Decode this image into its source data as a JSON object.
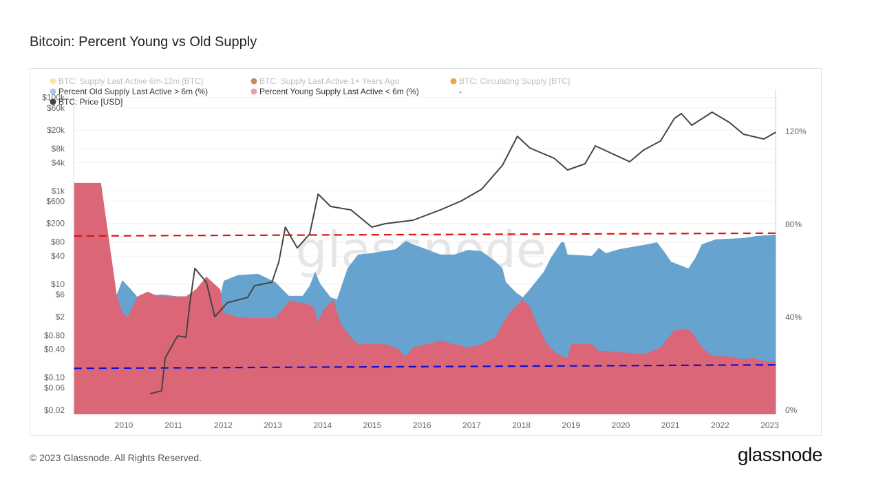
{
  "title": "Bitcoin: Percent Young vs Old Supply",
  "footer": "© 2023 Glassnode. All Rights Reserved.",
  "logo_text": "glassnode",
  "watermark_text": "glassnode",
  "colors": {
    "young_fill": "#db6677",
    "old_fill": "#67a3cf",
    "price_line": "#444444",
    "upper_band": "#e01010",
    "lower_band": "#1010d0"
  },
  "legend": [
    {
      "label": "BTC: Supply Last Active 6m-12m [BTC]",
      "color": "#f8e4a6",
      "faded": true
    },
    {
      "label": "BTC: Supply Last Active 1+ Years Ago",
      "color": "#c98b55",
      "faded": true
    },
    {
      "label": "BTC: Circulating Supply [BTC]",
      "color": "#f5a04a",
      "faded": true
    },
    {
      "label": "Percent Old Supply Last Active > 6m (%)",
      "color": "#a8cbe4",
      "faded": false
    },
    {
      "label": "Percent Young Supply Last Active < 6m (%)",
      "color": "#e8a0b0",
      "faded": false
    },
    {
      "label": "-",
      "color": "",
      "faded": false
    },
    {
      "label": "BTC: Price [USD]",
      "color": "#444444",
      "faded": false
    }
  ],
  "chart_data": {
    "type": "area",
    "title": "Bitcoin: Percent Young vs Old Supply",
    "grid": true,
    "legend_position": "top-left",
    "x_ticks": [
      "2010",
      "2011",
      "2012",
      "2013",
      "2014",
      "2015",
      "2016",
      "2017",
      "2018",
      "2019",
      "2020",
      "2021",
      "2022",
      "2023"
    ],
    "x_range": [
      2009.0,
      2023.12
    ],
    "left_axis": {
      "scale": "log",
      "range": [
        0.02,
        148000
      ],
      "ticks": [
        [
          "$100k",
          100000
        ],
        [
          "$60k",
          60000
        ],
        [
          "$20k",
          20000
        ],
        [
          "$8k",
          8000
        ],
        [
          "$4k",
          4000
        ],
        [
          "$1k",
          1000
        ],
        [
          "$600",
          600
        ],
        [
          "$200",
          200
        ],
        [
          "$80",
          80
        ],
        [
          "$40",
          40
        ],
        [
          "$10",
          10
        ],
        [
          "$6",
          6
        ],
        [
          "$2",
          2
        ],
        [
          "$0.80",
          0.8
        ],
        [
          "$0.40",
          0.4
        ],
        [
          "$0.10",
          0.1
        ],
        [
          "$0.06",
          0.06
        ],
        [
          "$0.02",
          0.02
        ]
      ]
    },
    "right_axis": {
      "scale": "linear",
      "range": [
        0,
        138
      ],
      "ticks": [
        [
          "0%",
          0
        ],
        [
          "40%",
          40
        ],
        [
          "80%",
          80
        ],
        [
          "120%",
          120
        ]
      ]
    },
    "series": [
      {
        "name": "Percent Old Supply Last Active > 6m (%)",
        "axis": "right",
        "kind": "area",
        "points": [
          [
            2009.0,
            2
          ],
          [
            2009.54,
            2
          ],
          [
            2009.86,
            50
          ],
          [
            2009.97,
            56
          ],
          [
            2010.14,
            52.1
          ],
          [
            2010.28,
            48.6
          ],
          [
            2010.48,
            49.2
          ],
          [
            2010.76,
            49.8
          ],
          [
            2011.25,
            48.6
          ],
          [
            2011.94,
            49.2
          ],
          [
            2012.01,
            55.7
          ],
          [
            2012.29,
            58.1
          ],
          [
            2012.7,
            58.7
          ],
          [
            2013.05,
            55.1
          ],
          [
            2013.32,
            49.2
          ],
          [
            2013.6,
            49.2
          ],
          [
            2013.74,
            53.6
          ],
          [
            2013.85,
            59.6
          ],
          [
            2013.95,
            54.5
          ],
          [
            2014.16,
            48.6
          ],
          [
            2014.29,
            47.7
          ],
          [
            2014.5,
            61
          ],
          [
            2014.71,
            67
          ],
          [
            2014.99,
            67.6
          ],
          [
            2015.47,
            69.3
          ],
          [
            2015.68,
            72.9
          ],
          [
            2015.82,
            71.4
          ],
          [
            2016.09,
            69.3
          ],
          [
            2016.37,
            67
          ],
          [
            2016.65,
            67
          ],
          [
            2016.93,
            69
          ],
          [
            2017.2,
            68.4
          ],
          [
            2017.48,
            64
          ],
          [
            2017.62,
            61
          ],
          [
            2017.69,
            55.1
          ],
          [
            2017.89,
            50.7
          ],
          [
            2018.03,
            48.6
          ],
          [
            2018.17,
            52.1
          ],
          [
            2018.45,
            59.6
          ],
          [
            2018.59,
            65.5
          ],
          [
            2018.8,
            72.3
          ],
          [
            2018.86,
            72.3
          ],
          [
            2018.93,
            67
          ],
          [
            2019.42,
            66.4
          ],
          [
            2019.56,
            69.9
          ],
          [
            2019.7,
            67.6
          ],
          [
            2019.97,
            69.3
          ],
          [
            2020.53,
            71.4
          ],
          [
            2020.73,
            72.3
          ],
          [
            2020.87,
            68.4
          ],
          [
            2021.01,
            64
          ],
          [
            2021.36,
            61
          ],
          [
            2021.5,
            65.5
          ],
          [
            2021.63,
            71.4
          ],
          [
            2021.91,
            73.5
          ],
          [
            2022.47,
            74.1
          ],
          [
            2022.74,
            75
          ],
          [
            2023.12,
            75.6
          ]
        ]
      },
      {
        "name": "Percent Young Supply Last Active < 6m (%)",
        "axis": "right",
        "kind": "area",
        "points": [
          [
            2009.0,
            97.8
          ],
          [
            2009.54,
            97.8
          ],
          [
            2009.86,
            49
          ],
          [
            2009.97,
            42
          ],
          [
            2010.07,
            40
          ],
          [
            2010.28,
            49
          ],
          [
            2010.48,
            51
          ],
          [
            2010.69,
            49
          ],
          [
            2010.97,
            49
          ],
          [
            2011.25,
            49
          ],
          [
            2011.45,
            52
          ],
          [
            2011.66,
            57.5
          ],
          [
            2011.94,
            52
          ],
          [
            2012.01,
            42
          ],
          [
            2012.29,
            40
          ],
          [
            2012.49,
            39.7
          ],
          [
            2012.77,
            39.7
          ],
          [
            2013.05,
            39.7
          ],
          [
            2013.32,
            46.8
          ],
          [
            2013.6,
            46.2
          ],
          [
            2013.81,
            44.7
          ],
          [
            2013.91,
            38
          ],
          [
            2014.02,
            43.3
          ],
          [
            2014.22,
            47.7
          ],
          [
            2014.36,
            37.3
          ],
          [
            2014.57,
            31.4
          ],
          [
            2014.71,
            28.4
          ],
          [
            2014.99,
            28.4
          ],
          [
            2015.26,
            28.4
          ],
          [
            2015.47,
            27
          ],
          [
            2015.68,
            23.1
          ],
          [
            2015.82,
            27
          ],
          [
            2016.09,
            28.4
          ],
          [
            2016.37,
            29.9
          ],
          [
            2016.65,
            28.4
          ],
          [
            2016.93,
            27
          ],
          [
            2017.2,
            28.4
          ],
          [
            2017.48,
            31.4
          ],
          [
            2017.62,
            37.3
          ],
          [
            2017.76,
            41.8
          ],
          [
            2018.03,
            47.7
          ],
          [
            2018.17,
            44.7
          ],
          [
            2018.31,
            37.3
          ],
          [
            2018.52,
            28.4
          ],
          [
            2018.73,
            24
          ],
          [
            2018.93,
            22.5
          ],
          [
            2019.0,
            28.4
          ],
          [
            2019.28,
            28.4
          ],
          [
            2019.42,
            28.4
          ],
          [
            2019.56,
            25.5
          ],
          [
            2019.7,
            25.5
          ],
          [
            2019.97,
            24.9
          ],
          [
            2020.25,
            24.6
          ],
          [
            2020.46,
            24
          ],
          [
            2020.8,
            27
          ],
          [
            2021.08,
            34.4
          ],
          [
            2021.36,
            35
          ],
          [
            2021.5,
            31.4
          ],
          [
            2021.63,
            27
          ],
          [
            2021.84,
            23.4
          ],
          [
            2022.19,
            23.1
          ],
          [
            2022.47,
            21.9
          ],
          [
            2022.67,
            22.5
          ],
          [
            2022.88,
            21
          ],
          [
            2023.12,
            21
          ]
        ]
      },
      {
        "name": "BTC: Price [USD]",
        "axis": "left",
        "kind": "line",
        "points": [
          [
            2010.53,
            0.045
          ],
          [
            2010.76,
            0.052
          ],
          [
            2010.83,
            0.26
          ],
          [
            2011.08,
            0.78
          ],
          [
            2011.25,
            0.73
          ],
          [
            2011.32,
            3.4
          ],
          [
            2011.43,
            21.8
          ],
          [
            2011.66,
            11
          ],
          [
            2011.83,
            2.0
          ],
          [
            2012.08,
            4.0
          ],
          [
            2012.49,
            5.2
          ],
          [
            2012.63,
            9.3
          ],
          [
            2012.98,
            11
          ],
          [
            2013.12,
            30.6
          ],
          [
            2013.25,
            167
          ],
          [
            2013.39,
            91
          ],
          [
            2013.49,
            60
          ],
          [
            2013.74,
            119
          ],
          [
            2013.91,
            853
          ],
          [
            2014.16,
            463
          ],
          [
            2014.57,
            391
          ],
          [
            2014.99,
            167
          ],
          [
            2015.26,
            198
          ],
          [
            2015.82,
            235
          ],
          [
            2016.37,
            391
          ],
          [
            2016.79,
            608
          ],
          [
            2017.2,
            1084
          ],
          [
            2017.62,
            3556
          ],
          [
            2017.92,
            14800
          ],
          [
            2018.17,
            8300
          ],
          [
            2018.66,
            4990
          ],
          [
            2018.93,
            2800
          ],
          [
            2019.28,
            3800
          ],
          [
            2019.49,
            9200
          ],
          [
            2020.18,
            4210
          ],
          [
            2020.46,
            7500
          ],
          [
            2020.8,
            11700
          ],
          [
            2021.08,
            35800
          ],
          [
            2021.22,
            45400
          ],
          [
            2021.43,
            25500
          ],
          [
            2021.84,
            48600
          ],
          [
            2022.19,
            29200
          ],
          [
            2022.47,
            16400
          ],
          [
            2022.88,
            12900
          ],
          [
            2023.12,
            18100
          ]
        ]
      }
    ],
    "reference_lines": [
      {
        "axis": "right",
        "style": "dashed",
        "color": "#e01010",
        "from": [
          2009.0,
          75
        ],
        "to": [
          2023.12,
          76.2
        ]
      },
      {
        "axis": "right",
        "style": "dashed",
        "color": "#1010d0",
        "from": [
          2009.0,
          18
        ],
        "to": [
          2023.12,
          19.5
        ]
      }
    ]
  }
}
